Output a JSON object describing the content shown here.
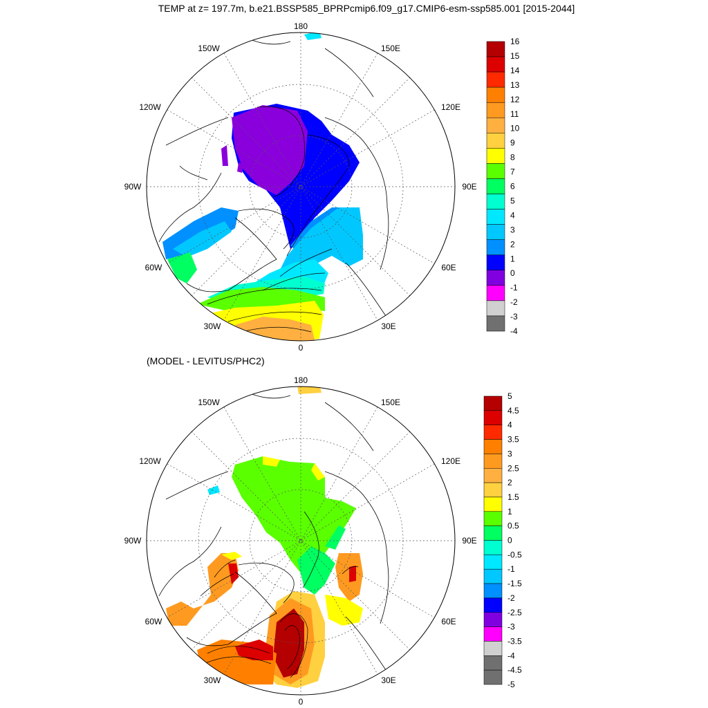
{
  "title": "TEMP at z= 197.7m, b.e21.BSSP585_BPRPcmip6.f09_g17.CMIP6-esm-ssp585.001 [2015-2044]",
  "subtitle": "(MODEL - LEVITUS/PHC2)",
  "longitude_labels": {
    "lon_180": "180",
    "lon_150W": "150W",
    "lon_150E": "150E",
    "lon_120W": "120W",
    "lon_120E": "120E",
    "lon_90W": "90W",
    "lon_90E": "90E",
    "lon_60W": "60W",
    "lon_60E": "60E",
    "lon_30W": "30W",
    "lon_30E": "30E",
    "lon_0": "0"
  },
  "colorbars": {
    "top": {
      "labels": [
        "16",
        "15",
        "14",
        "13",
        "12",
        "11",
        "10",
        "9",
        "8",
        "7",
        "6",
        "5",
        "4",
        "3",
        "2",
        "1",
        "0",
        "-1",
        "-2",
        "-3",
        "-4"
      ],
      "colors": [
        "#b40000",
        "#dc0000",
        "#ff2a00",
        "#ff8000",
        "#ff9a20",
        "#ffb040",
        "#ffd040",
        "#ffff00",
        "#5aff00",
        "#00ff60",
        "#00ffd0",
        "#00e8ff",
        "#00c8ff",
        "#0090ff",
        "#0000ff",
        "#8000e0",
        "#ff00ff",
        "#d0d0d0",
        "#707070"
      ]
    },
    "bottom": {
      "labels": [
        "5",
        "4.5",
        "4",
        "3.5",
        "3",
        "2.5",
        "2",
        "1.5",
        "1",
        "0.5",
        "0",
        "-0.5",
        "-1",
        "-1.5",
        "-2",
        "-2.5",
        "-3",
        "-3.5",
        "-4",
        "-4.5",
        "-5"
      ],
      "colors": [
        "#b40000",
        "#dc0000",
        "#ff2a00",
        "#ff8000",
        "#ff9a20",
        "#ffb040",
        "#ffd040",
        "#ffff00",
        "#5aff00",
        "#00ff60",
        "#00ffd0",
        "#00e8ff",
        "#00c8ff",
        "#0090ff",
        "#0000ff",
        "#8000e0",
        "#ff00ff",
        "#d0d0d0",
        "#707070",
        "#707070"
      ]
    }
  }
}
